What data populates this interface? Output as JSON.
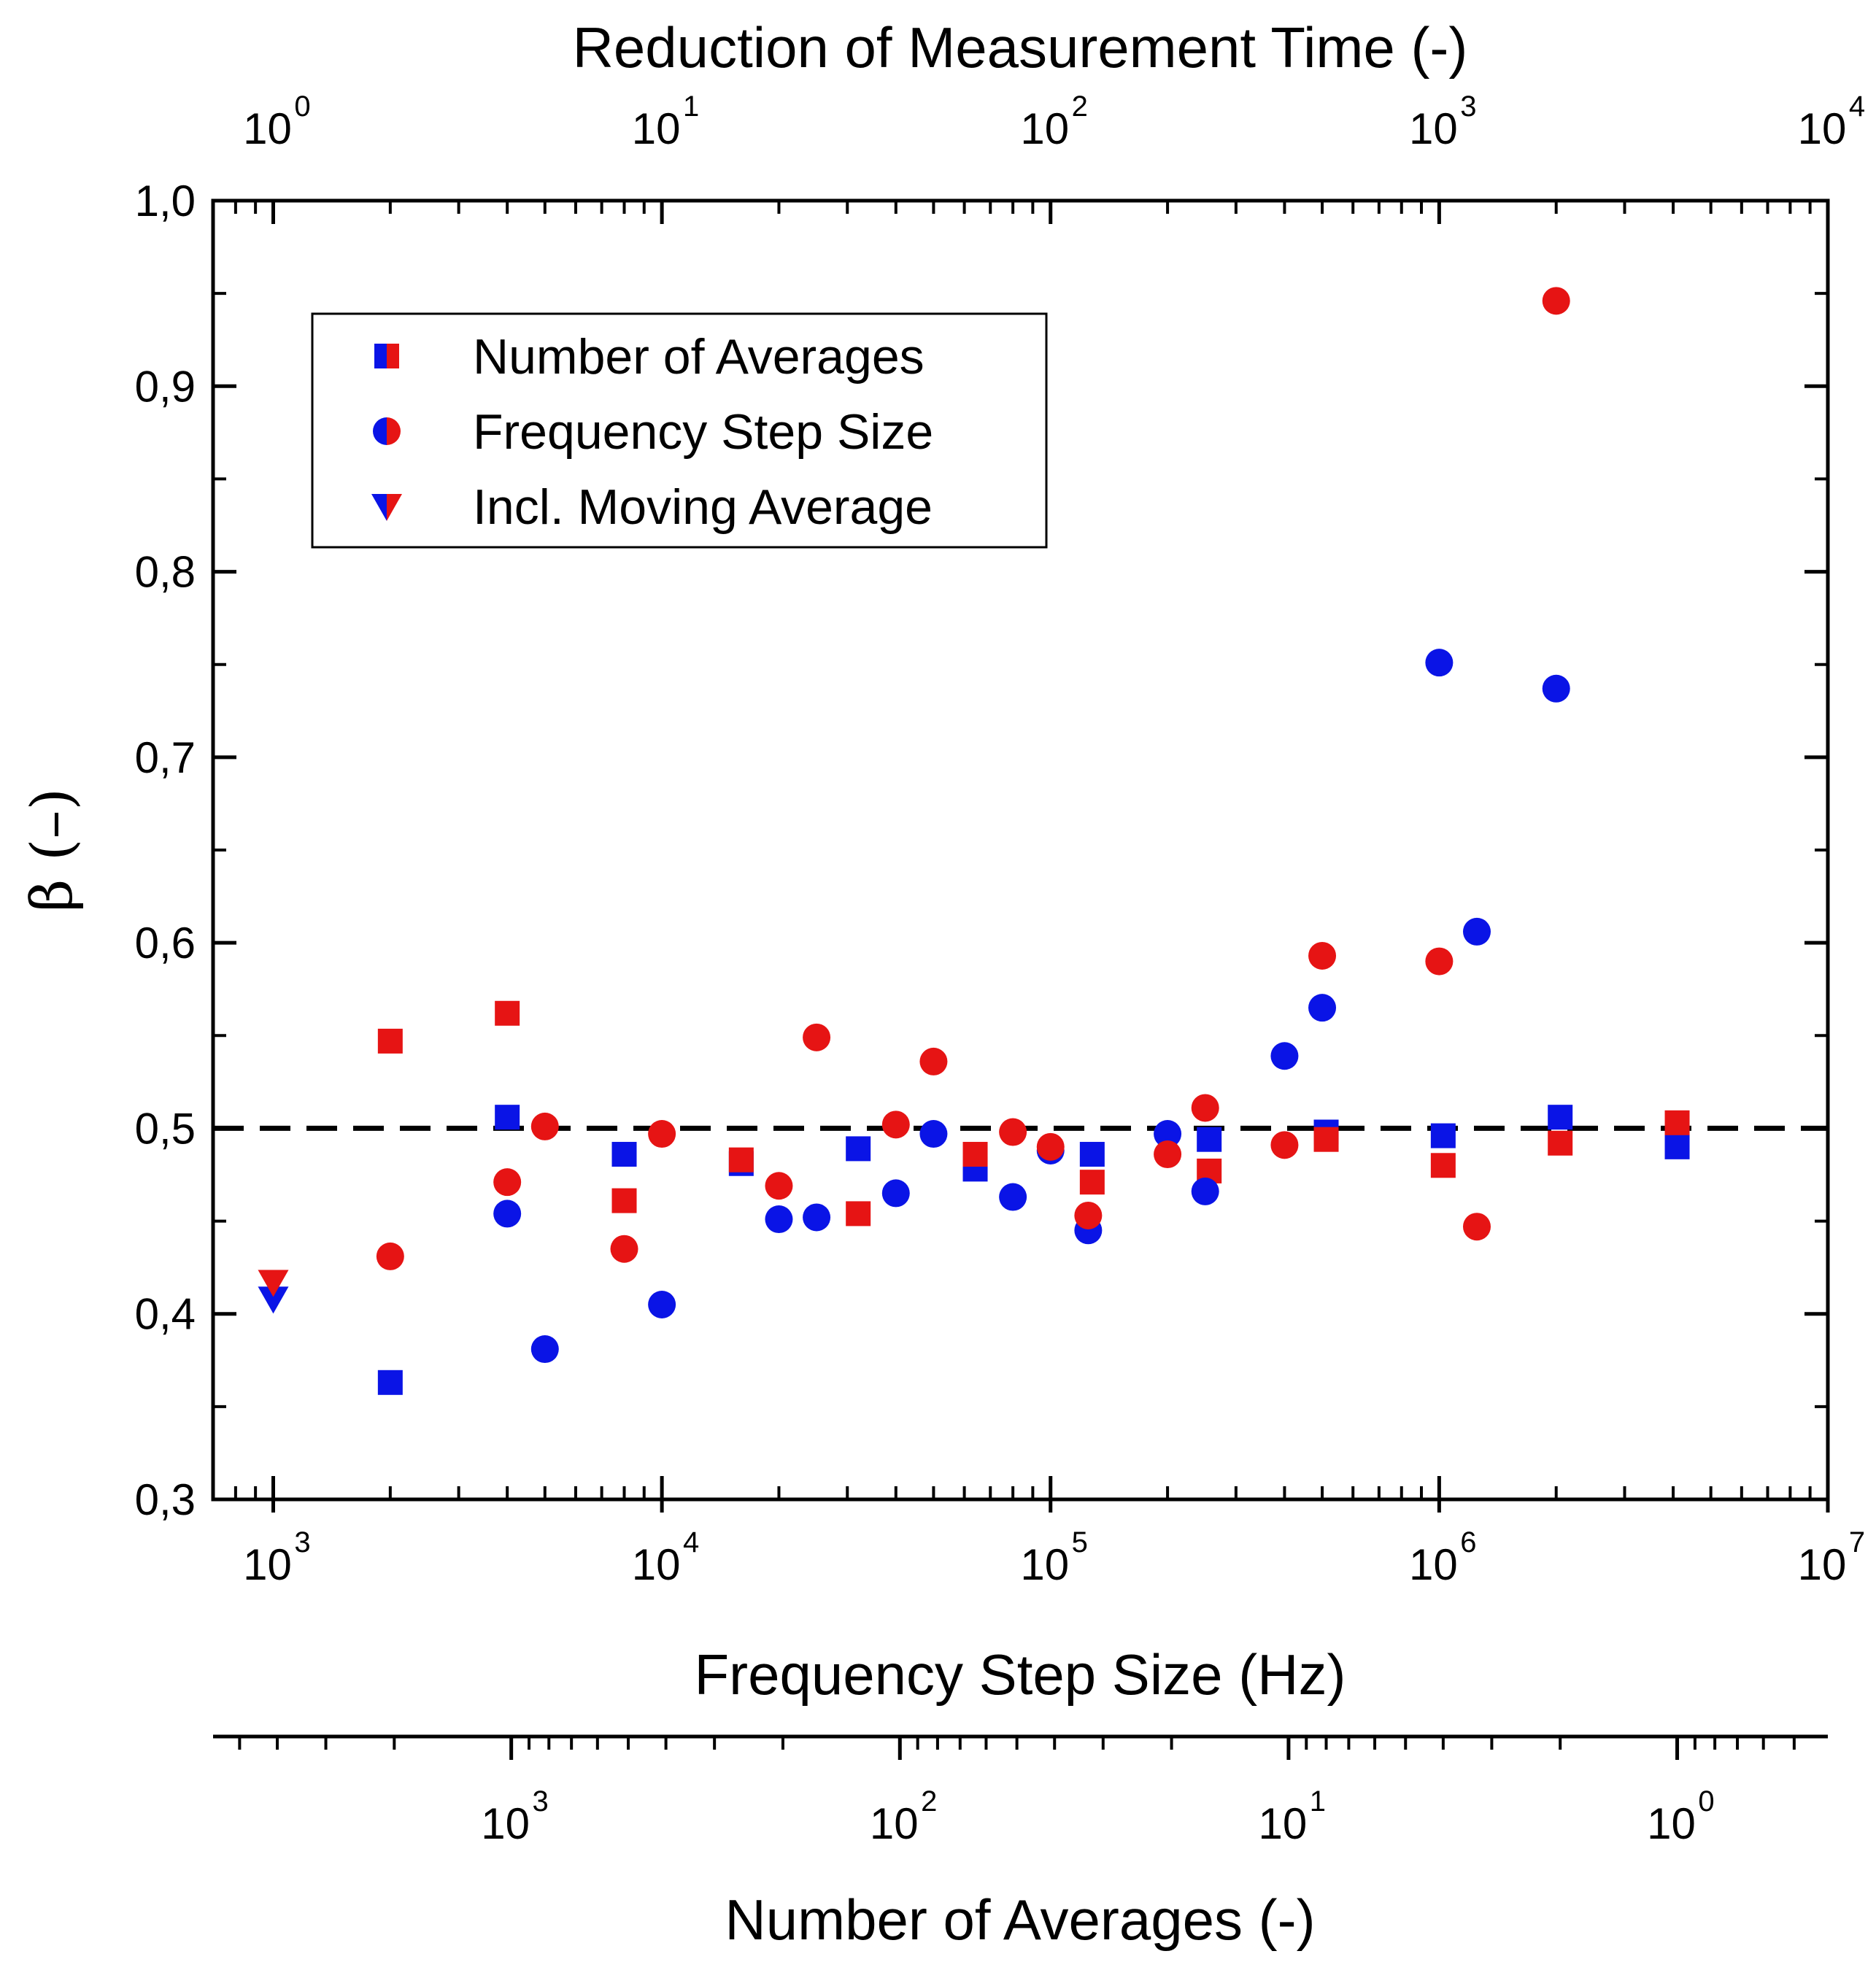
{
  "chart_data": {
    "type": "scatter",
    "title": "",
    "xlabel": "Frequency Step Size (Hz)",
    "ylabel": "β (–)",
    "top_axis_label": "Reduction of Measurement Time (-)",
    "secondary_bottom_axis_label": "Number of Averages (-)",
    "x_scale": "log",
    "xlim": [
      700,
      10000000
    ],
    "ylim": [
      0.3,
      1.0
    ],
    "y_ticks": [
      {
        "value": 0.3,
        "label": "0,3"
      },
      {
        "value": 0.4,
        "label": "0,4"
      },
      {
        "value": 0.5,
        "label": "0,5"
      },
      {
        "value": 0.6,
        "label": "0,6"
      },
      {
        "value": 0.7,
        "label": "0,7"
      },
      {
        "value": 0.8,
        "label": "0,8"
      },
      {
        "value": 0.9,
        "label": "0,9"
      },
      {
        "value": 1.0,
        "label": "1,0"
      }
    ],
    "x_ticks": [
      {
        "value": 1000,
        "base": "10",
        "exp": "3"
      },
      {
        "value": 10000,
        "base": "10",
        "exp": "4"
      },
      {
        "value": 100000,
        "base": "10",
        "exp": "5"
      },
      {
        "value": 1000000,
        "base": "10",
        "exp": "6"
      },
      {
        "value": 10000000,
        "base": "10",
        "exp": "7"
      }
    ],
    "top_ticks": [
      {
        "value": 1,
        "base": "10",
        "exp": "0"
      },
      {
        "value": 10,
        "base": "10",
        "exp": "1"
      },
      {
        "value": 100,
        "base": "10",
        "exp": "2"
      },
      {
        "value": 1000,
        "base": "10",
        "exp": "3"
      },
      {
        "value": 10000,
        "base": "10",
        "exp": "4"
      }
    ],
    "secondary_ticks": [
      {
        "value": 1000,
        "base": "10",
        "exp": "3"
      },
      {
        "value": 100,
        "base": "10",
        "exp": "2"
      },
      {
        "value": 10,
        "base": "10",
        "exp": "1"
      },
      {
        "value": 1,
        "base": "10",
        "exp": "0"
      }
    ],
    "reference_line": {
      "y": 0.5,
      "style": "dashed",
      "color": "#000000"
    },
    "legend": {
      "position": "top-left",
      "entries": [
        {
          "marker": "square",
          "label": "Number of Averages"
        },
        {
          "marker": "circle",
          "label": "Frequency Step Size"
        },
        {
          "marker": "triangle-down",
          "label": "Incl. Moving Average"
        }
      ]
    },
    "series": [
      {
        "name": "Number of Averages (blue)",
        "marker": "square",
        "color": "#0a14e6",
        "points": [
          [
            2000,
            0.363
          ],
          [
            4000,
            0.506
          ],
          [
            8000,
            0.486
          ],
          [
            16000,
            0.481
          ],
          [
            32000,
            0.489
          ],
          [
            64000,
            0.478
          ],
          [
            128000,
            0.486
          ],
          [
            256000,
            0.494
          ],
          [
            512000,
            0.498
          ],
          [
            1024000,
            0.496
          ],
          [
            2048000,
            0.506
          ],
          [
            4096000,
            0.49
          ]
        ]
      },
      {
        "name": "Number of Averages (red)",
        "marker": "square",
        "color": "#e61414",
        "points": [
          [
            2000,
            0.547
          ],
          [
            4000,
            0.562
          ],
          [
            8000,
            0.461
          ],
          [
            16000,
            0.483
          ],
          [
            32000,
            0.454
          ],
          [
            64000,
            0.486
          ],
          [
            128000,
            0.471
          ],
          [
            256000,
            0.477
          ],
          [
            512000,
            0.494
          ],
          [
            1024000,
            0.48
          ],
          [
            2048000,
            0.492
          ],
          [
            4096000,
            0.503
          ]
        ]
      },
      {
        "name": "Frequency Step Size (blue)",
        "marker": "circle",
        "color": "#0a14e6",
        "points": [
          [
            4000,
            0.454
          ],
          [
            5000,
            0.381
          ],
          [
            10000,
            0.405
          ],
          [
            20000,
            0.451
          ],
          [
            25000,
            0.452
          ],
          [
            40000,
            0.465
          ],
          [
            50000,
            0.497
          ],
          [
            80000,
            0.463
          ],
          [
            100000,
            0.488
          ],
          [
            125000,
            0.445
          ],
          [
            200000,
            0.497
          ],
          [
            250000,
            0.466
          ],
          [
            400000,
            0.539
          ],
          [
            500000,
            0.565
          ],
          [
            1000000,
            0.751
          ],
          [
            1250000,
            0.606
          ],
          [
            2000000,
            0.737
          ]
        ]
      },
      {
        "name": "Frequency Step Size (red)",
        "marker": "circle",
        "color": "#e61414",
        "points": [
          [
            2000,
            0.431
          ],
          [
            4000,
            0.471
          ],
          [
            5000,
            0.501
          ],
          [
            8000,
            0.435
          ],
          [
            10000,
            0.497
          ],
          [
            20000,
            0.469
          ],
          [
            25000,
            0.549
          ],
          [
            40000,
            0.502
          ],
          [
            50000,
            0.536
          ],
          [
            80000,
            0.498
          ],
          [
            100000,
            0.49
          ],
          [
            125000,
            0.453
          ],
          [
            200000,
            0.486
          ],
          [
            250000,
            0.511
          ],
          [
            400000,
            0.491
          ],
          [
            500000,
            0.593
          ],
          [
            1000000,
            0.59
          ],
          [
            1250000,
            0.447
          ],
          [
            2000000,
            0.946
          ]
        ]
      },
      {
        "name": "Incl. Moving Average (blue)",
        "marker": "triangle-down",
        "color": "#0a14e6",
        "points": [
          [
            1000,
            0.408
          ]
        ]
      },
      {
        "name": "Incl. Moving Average (red)",
        "marker": "triangle-down",
        "color": "#e61414",
        "points": [
          [
            1000,
            0.417
          ]
        ]
      }
    ]
  }
}
